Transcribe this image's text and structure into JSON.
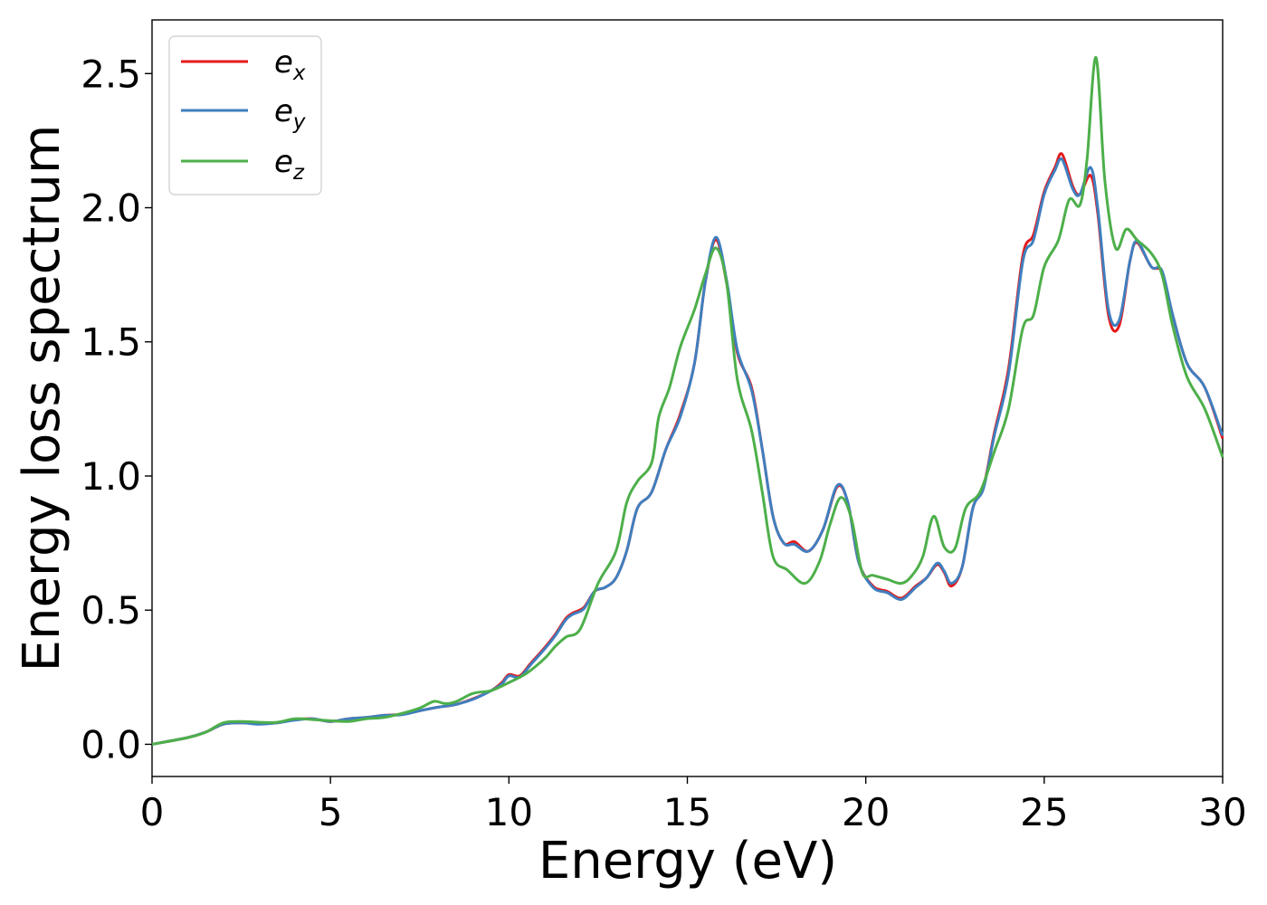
{
  "chart_data": {
    "type": "line",
    "xlabel": "Energy (eV)",
    "ylabel": "Energy loss spectrum",
    "xlim": [
      0,
      30
    ],
    "ylim": [
      -0.12,
      2.7
    ],
    "x_ticks": [
      "0",
      "5",
      "10",
      "15",
      "20",
      "25",
      "30"
    ],
    "y_ticks": [
      "0.0",
      "0.5",
      "1.0",
      "1.5",
      "2.0",
      "2.5"
    ],
    "x_tick_values": [
      0,
      5,
      10,
      15,
      20,
      25,
      30
    ],
    "y_tick_values": [
      0.0,
      0.5,
      1.0,
      1.5,
      2.0,
      2.5
    ],
    "grid": false,
    "legend_position": "top-left",
    "series": [
      {
        "name_base": "e",
        "name_sub": "x",
        "color": "#e41a1c",
        "points": [
          [
            0,
            0
          ],
          [
            1,
            0.025
          ],
          [
            1.5,
            0.045
          ],
          [
            2,
            0.075
          ],
          [
            2.5,
            0.08
          ],
          [
            3,
            0.078
          ],
          [
            3.5,
            0.08
          ],
          [
            4,
            0.092
          ],
          [
            4.5,
            0.095
          ],
          [
            5,
            0.085
          ],
          [
            5.5,
            0.095
          ],
          [
            6,
            0.1
          ],
          [
            6.5,
            0.108
          ],
          [
            7,
            0.112
          ],
          [
            7.5,
            0.125
          ],
          [
            8,
            0.138
          ],
          [
            8.5,
            0.148
          ],
          [
            9,
            0.17
          ],
          [
            9.5,
            0.2
          ],
          [
            9.8,
            0.23
          ],
          [
            10,
            0.26
          ],
          [
            10.3,
            0.255
          ],
          [
            10.6,
            0.3
          ],
          [
            11,
            0.36
          ],
          [
            11.3,
            0.41
          ],
          [
            11.6,
            0.47
          ],
          [
            11.8,
            0.49
          ],
          [
            12.1,
            0.51
          ],
          [
            12.4,
            0.57
          ],
          [
            12.7,
            0.585
          ],
          [
            13,
            0.62
          ],
          [
            13.3,
            0.72
          ],
          [
            13.6,
            0.88
          ],
          [
            14,
            0.94
          ],
          [
            14.4,
            1.1
          ],
          [
            14.8,
            1.23
          ],
          [
            15.2,
            1.42
          ],
          [
            15.5,
            1.72
          ],
          [
            15.8,
            1.88
          ],
          [
            16.1,
            1.72
          ],
          [
            16.4,
            1.46
          ],
          [
            16.8,
            1.33
          ],
          [
            17.1,
            1.1
          ],
          [
            17.4,
            0.85
          ],
          [
            17.7,
            0.75
          ],
          [
            18,
            0.755
          ],
          [
            18.4,
            0.72
          ],
          [
            18.8,
            0.8
          ],
          [
            19.2,
            0.96
          ],
          [
            19.5,
            0.9
          ],
          [
            19.8,
            0.68
          ],
          [
            20.2,
            0.59
          ],
          [
            20.6,
            0.57
          ],
          [
            21,
            0.545
          ],
          [
            21.4,
            0.59
          ],
          [
            21.7,
            0.62
          ],
          [
            22,
            0.67
          ],
          [
            22.2,
            0.64
          ],
          [
            22.4,
            0.59
          ],
          [
            22.7,
            0.66
          ],
          [
            23,
            0.88
          ],
          [
            23.3,
            0.96
          ],
          [
            23.6,
            1.16
          ],
          [
            24,
            1.4
          ],
          [
            24.4,
            1.82
          ],
          [
            24.7,
            1.9
          ],
          [
            25,
            2.06
          ],
          [
            25.3,
            2.15
          ],
          [
            25.5,
            2.2
          ],
          [
            25.8,
            2.08
          ],
          [
            26,
            2.05
          ],
          [
            26.3,
            2.12
          ],
          [
            26.5,
            1.98
          ],
          [
            26.8,
            1.6
          ],
          [
            27.1,
            1.56
          ],
          [
            27.4,
            1.8
          ],
          [
            27.6,
            1.87
          ],
          [
            28,
            1.78
          ],
          [
            28.3,
            1.76
          ],
          [
            28.6,
            1.6
          ],
          [
            29,
            1.42
          ],
          [
            29.5,
            1.33
          ],
          [
            30,
            1.14
          ]
        ]
      },
      {
        "name_base": "e",
        "name_sub": "y",
        "color": "#3f7fbf",
        "points": [
          [
            0,
            0
          ],
          [
            1,
            0.025
          ],
          [
            1.5,
            0.045
          ],
          [
            2,
            0.075
          ],
          [
            2.5,
            0.08
          ],
          [
            3,
            0.075
          ],
          [
            3.5,
            0.08
          ],
          [
            4,
            0.09
          ],
          [
            4.5,
            0.095
          ],
          [
            5,
            0.085
          ],
          [
            5.5,
            0.095
          ],
          [
            6,
            0.1
          ],
          [
            6.5,
            0.108
          ],
          [
            7,
            0.11
          ],
          [
            7.5,
            0.125
          ],
          [
            8,
            0.138
          ],
          [
            8.5,
            0.148
          ],
          [
            9,
            0.168
          ],
          [
            9.5,
            0.2
          ],
          [
            9.8,
            0.225
          ],
          [
            10,
            0.255
          ],
          [
            10.3,
            0.25
          ],
          [
            10.6,
            0.295
          ],
          [
            11,
            0.355
          ],
          [
            11.3,
            0.405
          ],
          [
            11.6,
            0.465
          ],
          [
            11.8,
            0.485
          ],
          [
            12.1,
            0.505
          ],
          [
            12.4,
            0.57
          ],
          [
            12.7,
            0.585
          ],
          [
            13,
            0.62
          ],
          [
            13.3,
            0.72
          ],
          [
            13.6,
            0.88
          ],
          [
            14,
            0.94
          ],
          [
            14.4,
            1.1
          ],
          [
            14.8,
            1.22
          ],
          [
            15.2,
            1.42
          ],
          [
            15.5,
            1.72
          ],
          [
            15.8,
            1.89
          ],
          [
            16.1,
            1.73
          ],
          [
            16.4,
            1.47
          ],
          [
            16.8,
            1.32
          ],
          [
            17.1,
            1.1
          ],
          [
            17.4,
            0.85
          ],
          [
            17.7,
            0.75
          ],
          [
            18,
            0.745
          ],
          [
            18.4,
            0.72
          ],
          [
            18.8,
            0.8
          ],
          [
            19.2,
            0.965
          ],
          [
            19.5,
            0.9
          ],
          [
            19.8,
            0.68
          ],
          [
            20.2,
            0.585
          ],
          [
            20.6,
            0.565
          ],
          [
            21,
            0.54
          ],
          [
            21.4,
            0.585
          ],
          [
            21.7,
            0.62
          ],
          [
            22,
            0.675
          ],
          [
            22.2,
            0.645
          ],
          [
            22.4,
            0.6
          ],
          [
            22.7,
            0.66
          ],
          [
            23,
            0.88
          ],
          [
            23.3,
            0.955
          ],
          [
            23.6,
            1.15
          ],
          [
            24,
            1.38
          ],
          [
            24.4,
            1.8
          ],
          [
            24.7,
            1.88
          ],
          [
            25,
            2.05
          ],
          [
            25.3,
            2.14
          ],
          [
            25.5,
            2.18
          ],
          [
            25.8,
            2.07
          ],
          [
            26,
            2.05
          ],
          [
            26.3,
            2.15
          ],
          [
            26.5,
            2.0
          ],
          [
            26.8,
            1.62
          ],
          [
            27.1,
            1.58
          ],
          [
            27.4,
            1.8
          ],
          [
            27.6,
            1.875
          ],
          [
            28,
            1.78
          ],
          [
            28.3,
            1.765
          ],
          [
            28.6,
            1.6
          ],
          [
            29,
            1.42
          ],
          [
            29.5,
            1.33
          ],
          [
            30,
            1.15
          ]
        ]
      },
      {
        "name_base": "e",
        "name_sub": "z",
        "color": "#4daf4a",
        "points": [
          [
            0,
            0
          ],
          [
            1,
            0.025
          ],
          [
            1.5,
            0.045
          ],
          [
            2,
            0.08
          ],
          [
            2.5,
            0.085
          ],
          [
            3,
            0.082
          ],
          [
            3.5,
            0.082
          ],
          [
            4,
            0.095
          ],
          [
            4.5,
            0.092
          ],
          [
            5,
            0.088
          ],
          [
            5.5,
            0.085
          ],
          [
            6,
            0.095
          ],
          [
            6.5,
            0.1
          ],
          [
            7,
            0.115
          ],
          [
            7.5,
            0.135
          ],
          [
            7.9,
            0.16
          ],
          [
            8.2,
            0.152
          ],
          [
            8.5,
            0.158
          ],
          [
            9,
            0.19
          ],
          [
            9.5,
            0.2
          ],
          [
            10,
            0.23
          ],
          [
            10.5,
            0.265
          ],
          [
            11,
            0.32
          ],
          [
            11.3,
            0.365
          ],
          [
            11.6,
            0.4
          ],
          [
            12,
            0.43
          ],
          [
            12.5,
            0.6
          ],
          [
            13,
            0.72
          ],
          [
            13.3,
            0.9
          ],
          [
            13.6,
            0.98
          ],
          [
            14,
            1.05
          ],
          [
            14.2,
            1.22
          ],
          [
            14.5,
            1.33
          ],
          [
            14.8,
            1.48
          ],
          [
            15.2,
            1.62
          ],
          [
            15.5,
            1.75
          ],
          [
            15.8,
            1.85
          ],
          [
            16.1,
            1.72
          ],
          [
            16.4,
            1.36
          ],
          [
            16.8,
            1.17
          ],
          [
            17.1,
            0.94
          ],
          [
            17.4,
            0.7
          ],
          [
            17.8,
            0.65
          ],
          [
            18.3,
            0.6
          ],
          [
            18.7,
            0.68
          ],
          [
            19,
            0.82
          ],
          [
            19.3,
            0.92
          ],
          [
            19.6,
            0.84
          ],
          [
            19.9,
            0.64
          ],
          [
            20.2,
            0.63
          ],
          [
            20.6,
            0.615
          ],
          [
            21,
            0.6
          ],
          [
            21.3,
            0.63
          ],
          [
            21.6,
            0.7
          ],
          [
            21.9,
            0.85
          ],
          [
            22.2,
            0.735
          ],
          [
            22.5,
            0.73
          ],
          [
            22.8,
            0.88
          ],
          [
            23.2,
            0.94
          ],
          [
            23.6,
            1.09
          ],
          [
            24,
            1.25
          ],
          [
            24.4,
            1.55
          ],
          [
            24.7,
            1.6
          ],
          [
            25,
            1.78
          ],
          [
            25.4,
            1.88
          ],
          [
            25.7,
            2.03
          ],
          [
            26,
            2.01
          ],
          [
            26.2,
            2.18
          ],
          [
            26.45,
            2.56
          ],
          [
            26.7,
            2.1
          ],
          [
            27,
            1.85
          ],
          [
            27.3,
            1.92
          ],
          [
            27.6,
            1.88
          ],
          [
            28,
            1.83
          ],
          [
            28.3,
            1.75
          ],
          [
            28.6,
            1.56
          ],
          [
            29,
            1.37
          ],
          [
            29.5,
            1.25
          ],
          [
            30,
            1.07
          ]
        ]
      }
    ]
  }
}
